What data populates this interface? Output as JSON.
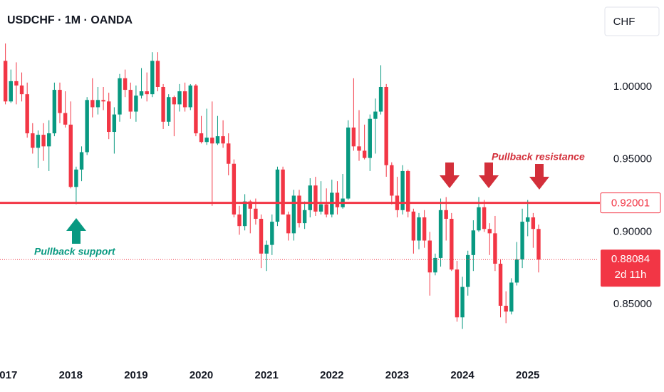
{
  "chart_data": {
    "type": "candlestick",
    "title": "USDCHF · 1M · OANDA",
    "currency": "CHF",
    "x": [
      "2017-01",
      "2017-02",
      "2017-03",
      "2017-04",
      "2017-05",
      "2017-06",
      "2017-07",
      "2017-08",
      "2017-09",
      "2017-10",
      "2017-11",
      "2017-12",
      "2018-01",
      "2018-02",
      "2018-03",
      "2018-04",
      "2018-05",
      "2018-06",
      "2018-07",
      "2018-08",
      "2018-09",
      "2018-10",
      "2018-11",
      "2018-12",
      "2019-01",
      "2019-02",
      "2019-03",
      "2019-04",
      "2019-05",
      "2019-06",
      "2019-07",
      "2019-08",
      "2019-09",
      "2019-10",
      "2019-11",
      "2019-12",
      "2020-01",
      "2020-02",
      "2020-03",
      "2020-04",
      "2020-05",
      "2020-06",
      "2020-07",
      "2020-08",
      "2020-09",
      "2020-10",
      "2020-11",
      "2020-12",
      "2021-01",
      "2021-02",
      "2021-03",
      "2021-04",
      "2021-05",
      "2021-06",
      "2021-07",
      "2021-08",
      "2021-09",
      "2021-10",
      "2021-11",
      "2021-12",
      "2022-01",
      "2022-02",
      "2022-03",
      "2022-04",
      "2022-05",
      "2022-06",
      "2022-07",
      "2022-08",
      "2022-09",
      "2022-10",
      "2022-11",
      "2022-12",
      "2023-01",
      "2023-02",
      "2023-03",
      "2023-04",
      "2023-05",
      "2023-06",
      "2023-07",
      "2023-08",
      "2023-09",
      "2023-10",
      "2023-11",
      "2023-12",
      "2024-01",
      "2024-02",
      "2024-03",
      "2024-04",
      "2024-05",
      "2024-06",
      "2024-07",
      "2024-08",
      "2024-09",
      "2024-10",
      "2024-11",
      "2024-12",
      "2025-01",
      "2025-02",
      "2025-03"
    ],
    "open": [
      1.018,
      0.99,
      1.004,
      1.001,
      0.995,
      0.968,
      0.958,
      0.967,
      0.959,
      0.968,
      0.998,
      0.982,
      0.974,
      0.931,
      0.943,
      0.955,
      0.991,
      0.986,
      0.991,
      0.99,
      0.969,
      0.981,
      1.006,
      0.998,
      0.983,
      0.994,
      0.997,
      0.995,
      1.018,
      1.0,
      0.976,
      0.993,
      0.988,
      0.997,
      0.986,
      1.001,
      0.968,
      0.962,
      0.965,
      0.961,
      0.966,
      0.961,
      0.947,
      0.912,
      0.904,
      0.921,
      0.916,
      0.909,
      0.885,
      0.891,
      0.907,
      0.943,
      0.912,
      0.899,
      0.925,
      0.906,
      0.915,
      0.932,
      0.914,
      0.919,
      0.912,
      0.927,
      0.917,
      0.923,
      0.972,
      0.959,
      0.956,
      0.951,
      0.978,
      0.983,
      1.0,
      0.946,
      0.925,
      0.915,
      0.942,
      0.914,
      0.894,
      0.91,
      0.894,
      0.872,
      0.882,
      0.915,
      0.909,
      0.874,
      0.841,
      0.862,
      0.884,
      0.901,
      0.917,
      0.902,
      0.899,
      0.878,
      0.849,
      0.845,
      0.865,
      0.881,
      0.907,
      0.91,
      0.902
    ],
    "high": [
      1.03,
      1.012,
      1.017,
      1.01,
      1.003,
      0.975,
      0.97,
      0.975,
      0.977,
      1.003,
      1.003,
      0.997,
      0.99,
      0.945,
      0.959,
      0.993,
      1.006,
      1.0,
      1.0,
      0.996,
      0.986,
      1.009,
      1.012,
      1.003,
      1.001,
      1.013,
      1.01,
      1.024,
      1.024,
      1.002,
      0.995,
      0.994,
      1.002,
      1.003,
      1.002,
      1.002,
      0.98,
      0.985,
      0.99,
      0.98,
      0.977,
      0.968,
      0.95,
      0.918,
      0.926,
      0.922,
      0.923,
      0.912,
      0.894,
      0.912,
      0.945,
      0.945,
      0.914,
      0.929,
      0.929,
      0.921,
      0.937,
      0.938,
      0.935,
      0.93,
      0.936,
      0.935,
      0.94,
      0.977,
      1.006,
      0.984,
      0.974,
      0.981,
      0.992,
      1.015,
      1.002,
      0.948,
      0.938,
      0.946,
      0.943,
      0.916,
      0.913,
      0.915,
      0.9,
      0.885,
      0.923,
      0.924,
      0.913,
      0.88,
      0.869,
      0.887,
      0.908,
      0.924,
      0.922,
      0.906,
      0.911,
      0.881,
      0.859,
      0.868,
      0.893,
      0.916,
      0.922,
      0.913,
      0.905
    ],
    "low": [
      0.988,
      0.989,
      0.988,
      0.99,
      0.965,
      0.954,
      0.944,
      0.949,
      0.942,
      0.966,
      0.975,
      0.972,
      0.93,
      0.919,
      0.935,
      0.953,
      0.979,
      0.981,
      0.984,
      0.964,
      0.954,
      0.976,
      0.993,
      0.978,
      0.976,
      0.992,
      0.99,
      0.993,
      0.997,
      0.971,
      0.973,
      0.966,
      0.983,
      0.983,
      0.984,
      0.966,
      0.961,
      0.96,
      0.918,
      0.96,
      0.958,
      0.939,
      0.91,
      0.898,
      0.901,
      0.899,
      0.905,
      0.875,
      0.873,
      0.884,
      0.904,
      0.912,
      0.894,
      0.894,
      0.903,
      0.902,
      0.91,
      0.911,
      0.912,
      0.91,
      0.91,
      0.912,
      0.916,
      0.922,
      0.956,
      0.949,
      0.95,
      0.942,
      0.954,
      0.981,
      0.938,
      0.919,
      0.91,
      0.912,
      0.91,
      0.885,
      0.888,
      0.889,
      0.856,
      0.87,
      0.876,
      0.894,
      0.873,
      0.838,
      0.833,
      0.856,
      0.873,
      0.9,
      0.9,
      0.884,
      0.873,
      0.841,
      0.837,
      0.843,
      0.863,
      0.875,
      0.897,
      0.889,
      0.872
    ],
    "close": [
      0.99,
      1.004,
      1.001,
      0.995,
      0.968,
      0.958,
      0.967,
      0.959,
      0.968,
      0.998,
      0.982,
      0.974,
      0.931,
      0.943,
      0.955,
      0.991,
      0.986,
      0.991,
      0.99,
      0.969,
      0.981,
      1.006,
      0.998,
      0.983,
      0.994,
      0.997,
      0.995,
      1.018,
      1.0,
      0.976,
      0.993,
      0.988,
      0.997,
      0.986,
      1.001,
      0.968,
      0.962,
      0.965,
      0.961,
      0.966,
      0.961,
      0.947,
      0.912,
      0.904,
      0.921,
      0.916,
      0.909,
      0.885,
      0.891,
      0.907,
      0.943,
      0.912,
      0.899,
      0.925,
      0.906,
      0.915,
      0.932,
      0.914,
      0.919,
      0.912,
      0.927,
      0.917,
      0.923,
      0.972,
      0.959,
      0.956,
      0.951,
      0.978,
      0.983,
      1.0,
      0.946,
      0.925,
      0.915,
      0.942,
      0.914,
      0.894,
      0.91,
      0.894,
      0.872,
      0.882,
      0.915,
      0.909,
      0.874,
      0.841,
      0.862,
      0.884,
      0.901,
      0.917,
      0.902,
      0.899,
      0.878,
      0.849,
      0.845,
      0.865,
      0.881,
      0.907,
      0.91,
      0.902,
      0.88084
    ],
    "up_color": "#089981",
    "down_color": "#f23645",
    "level": 0.92001,
    "level_color": "#f23645",
    "countdown": "2d 11h",
    "annotations": {
      "resistance": "Pullback resistance",
      "support": "Pullback support"
    },
    "xlim": [
      "2016-12",
      "2026-02"
    ],
    "xticks": [
      {
        "value": "2017-01",
        "label": "2017"
      },
      {
        "value": "2018-01",
        "label": "2018"
      },
      {
        "value": "2019-01",
        "label": "2019"
      },
      {
        "value": "2020-01",
        "label": "2020"
      },
      {
        "value": "2021-01",
        "label": "2021"
      },
      {
        "value": "2022-01",
        "label": "2022"
      },
      {
        "value": "2023-01",
        "label": "2023"
      },
      {
        "value": "2024-01",
        "label": "2024"
      },
      {
        "value": "2025-01",
        "label": "2025"
      }
    ],
    "ylim": [
      0.819,
      1.06
    ],
    "yticks": [
      {
        "value": 0.85,
        "label": "0.85000"
      },
      {
        "value": 0.9,
        "label": "0.90000"
      },
      {
        "value": 0.95,
        "label": "0.95000"
      },
      {
        "value": 1,
        "label": "1.00000"
      }
    ]
  }
}
